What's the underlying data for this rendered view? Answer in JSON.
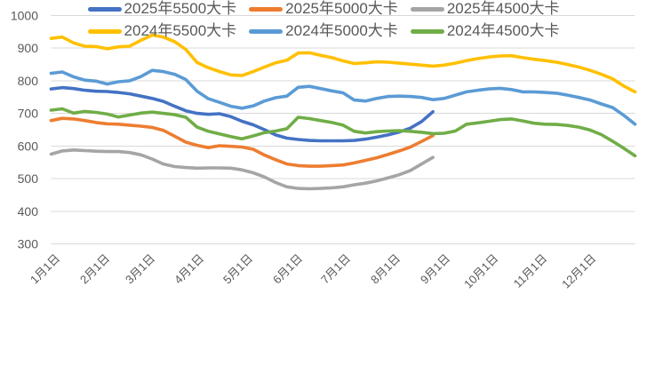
{
  "chart_data": {
    "type": "line",
    "title": "",
    "grid": "horizontal",
    "gridline_color": "#d9d9d9",
    "axis_label_color": "#595959",
    "legend_text_color": "#595959",
    "legend_position": "bottom",
    "legend_rows": [
      [
        0,
        1,
        2
      ],
      [
        3,
        4,
        5
      ]
    ],
    "y_axis": {
      "min": 300,
      "max": 1000,
      "tick_step": 100,
      "ticks": [
        1000,
        900,
        800,
        700,
        600,
        500,
        400,
        300
      ]
    },
    "x_axis": {
      "tick_labels": [
        "1月1日",
        "2月1日",
        "3月1日",
        "4月1日",
        "5月1日",
        "6月1日",
        "7月1日",
        "8月1日",
        "9月1日",
        "10月1日",
        "11月1日",
        "12月1日"
      ],
      "tick_days": [
        0,
        31,
        59,
        90,
        120,
        151,
        181,
        212,
        243,
        273,
        304,
        334
      ],
      "total_days": 364,
      "sample_interval_days": 7
    },
    "series": [
      {
        "name": "2025年5500大卡",
        "color": "#4472C4",
        "values": [
          775,
          779,
          776,
          771,
          768,
          767,
          764,
          760,
          753,
          746,
          737,
          722,
          708,
          700,
          697,
          699,
          690,
          676,
          665,
          650,
          634,
          624,
          620,
          617,
          616,
          616,
          616,
          617,
          621,
          627,
          634,
          643,
          655,
          675,
          705
        ]
      },
      {
        "name": "2025年5000大卡",
        "color": "#ED7D31",
        "values": [
          678,
          685,
          683,
          678,
          672,
          668,
          667,
          664,
          661,
          657,
          648,
          630,
          612,
          602,
          595,
          601,
          599,
          597,
          590,
          572,
          558,
          545,
          540,
          538,
          538,
          540,
          542,
          548,
          556,
          564,
          574,
          585,
          597,
          614,
          632
        ]
      },
      {
        "name": "2025年4500大卡",
        "color": "#A5A5A5",
        "values": [
          575,
          585,
          588,
          586,
          584,
          583,
          583,
          580,
          573,
          560,
          545,
          537,
          534,
          532,
          533,
          533,
          532,
          527,
          518,
          505,
          488,
          475,
          470,
          469,
          470,
          472,
          475,
          481,
          486,
          493,
          502,
          512,
          525,
          545,
          565
        ]
      },
      {
        "name": "2024年5500大卡",
        "color": "#FFC000",
        "values": [
          930,
          934,
          916,
          906,
          905,
          898,
          904,
          906,
          924,
          940,
          934,
          920,
          896,
          856,
          840,
          828,
          818,
          816,
          828,
          842,
          855,
          863,
          885,
          886,
          878,
          871,
          861,
          853,
          855,
          858,
          857,
          854,
          851,
          848,
          845,
          848,
          854,
          862,
          868,
          873,
          876,
          877,
          871,
          866,
          862,
          857,
          850,
          842,
          832,
          820,
          806,
          784,
          766
        ]
      },
      {
        "name": "2024年5000大卡",
        "color": "#5B9BD5",
        "values": [
          823,
          827,
          812,
          802,
          799,
          790,
          797,
          800,
          813,
          832,
          828,
          820,
          804,
          768,
          745,
          734,
          722,
          716,
          723,
          738,
          748,
          753,
          780,
          783,
          776,
          769,
          763,
          741,
          738,
          746,
          752,
          753,
          752,
          749,
          742,
          746,
          756,
          766,
          771,
          775,
          777,
          773,
          766,
          766,
          764,
          762,
          756,
          749,
          741,
          729,
          718,
          694,
          667
        ]
      },
      {
        "name": "2024年4500大卡",
        "color": "#70AD47",
        "values": [
          710,
          714,
          701,
          706,
          703,
          698,
          689,
          695,
          701,
          704,
          700,
          696,
          688,
          658,
          645,
          637,
          629,
          622,
          631,
          641,
          646,
          653,
          688,
          684,
          678,
          672,
          664,
          645,
          640,
          644,
          646,
          647,
          645,
          642,
          638,
          639,
          646,
          667,
          671,
          676,
          681,
          683,
          677,
          670,
          667,
          666,
          663,
          658,
          649,
          635,
          615,
          593,
          570
        ]
      }
    ]
  }
}
